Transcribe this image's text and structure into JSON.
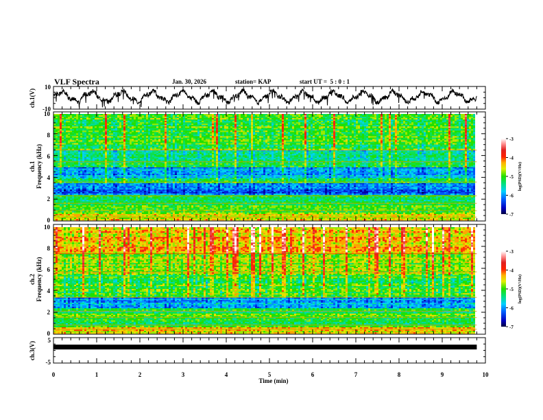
{
  "header": {
    "title": "VLF Spectra",
    "date": "Jan. 30, 2026",
    "station": "station= KAP",
    "start": "start UT =  5 : 0 : 1"
  },
  "chart_data": [
    {
      "type": "line",
      "name": "ch1-waveform",
      "ylabel": "ch.1(V)",
      "ylim": [
        -10,
        10
      ],
      "yticks": [
        "10",
        "-10"
      ],
      "xlim": [
        0,
        10
      ],
      "data_end_min": 9.8,
      "description_values": {
        "approx_mean": 1,
        "approx_amplitude": 6,
        "dominant_period_min": 0.7
      }
    },
    {
      "type": "heatmap",
      "name": "ch1-spectrogram",
      "ylabel_top": "ch.1",
      "ylabel": "Frequency (kHz)",
      "ylim": [
        0,
        10
      ],
      "yticks": [
        "0",
        "2",
        "4",
        "6",
        "8",
        "10"
      ],
      "xlim": [
        0,
        10
      ],
      "data_end_min": 9.8,
      "colorbar": {
        "label": "log(PSD)(V²/Hz)",
        "range": [
          -7,
          -3
        ],
        "ticks": [
          "-3",
          "-4",
          "-5",
          "-6",
          "-7"
        ]
      },
      "bands_kHz": [
        {
          "from": 0,
          "to": 0.6,
          "level": -4.6
        },
        {
          "from": 0.6,
          "to": 1.8,
          "level": -5.0
        },
        {
          "from": 1.8,
          "to": 2.4,
          "level": -5.2
        },
        {
          "from": 2.4,
          "to": 3.5,
          "level": -6.1
        },
        {
          "from": 3.5,
          "to": 4.0,
          "level": -5.3
        },
        {
          "from": 4.0,
          "to": 5.0,
          "level": -5.9
        },
        {
          "from": 5.0,
          "to": 5.6,
          "level": -5.1
        },
        {
          "from": 5.6,
          "to": 6.6,
          "level": -5.5
        },
        {
          "from": 6.6,
          "to": 10,
          "level": -5.0
        }
      ]
    },
    {
      "type": "heatmap",
      "name": "ch2-spectrogram",
      "ylabel_top": "ch.2",
      "ylabel": "Frequency (kHz)",
      "ylim": [
        0,
        10
      ],
      "yticks": [
        "0",
        "2",
        "4",
        "6",
        "8",
        "10"
      ],
      "xlim": [
        0,
        10
      ],
      "data_end_min": 9.8,
      "colorbar": {
        "label": "log(PSD)(V²/Hz)",
        "range": [
          -7,
          -3
        ],
        "ticks": [
          "-3",
          "-4",
          "-5",
          "-6",
          "-7"
        ]
      },
      "bands_kHz": [
        {
          "from": 0,
          "to": 0.6,
          "level": -4.5
        },
        {
          "from": 0.6,
          "to": 2.0,
          "level": -5.1
        },
        {
          "from": 2.0,
          "to": 2.4,
          "level": -5.3
        },
        {
          "from": 2.4,
          "to": 3.4,
          "level": -5.9
        },
        {
          "from": 3.4,
          "to": 5.5,
          "level": -5.0
        },
        {
          "from": 5.5,
          "to": 7.5,
          "level": -4.7
        },
        {
          "from": 7.5,
          "to": 10,
          "level": -4.3
        }
      ]
    },
    {
      "type": "line",
      "name": "ch3-waveform",
      "ylabel": "ch.3(V)",
      "ylim": [
        -5,
        5
      ],
      "yticks": [
        "5",
        "-5"
      ],
      "xlim": [
        0,
        10
      ],
      "data_end_min": 9.8,
      "description_values": {
        "approx_mean": 1.3,
        "approx_amplitude": 0.3
      }
    }
  ],
  "xaxis": {
    "label": "Time (min)",
    "ticks": [
      "0",
      "1",
      "2",
      "3",
      "4",
      "5",
      "6",
      "7",
      "8",
      "9",
      "10"
    ]
  }
}
